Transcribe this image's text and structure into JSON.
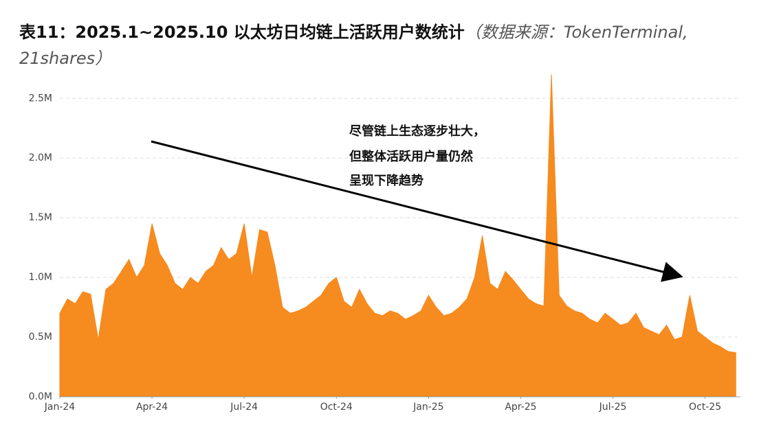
{
  "chart_data": {
    "type": "area",
    "title": "表11：2025.1~2025.10 以太坊日均链上活跃用户数统计",
    "subtitle": "（数据来源：TokenTerminal, 21shares）",
    "annotation": [
      "尽管链上生态逐步壮大，",
      "但整体活跃用户量仍然",
      "呈现下降趋势"
    ],
    "color": "#f68b1f",
    "grid": true,
    "x": [
      0,
      0.25,
      0.5,
      0.75,
      1,
      1.25,
      1.5,
      1.75,
      2,
      2.25,
      2.5,
      2.75,
      3,
      3.25,
      3.5,
      3.75,
      4,
      4.25,
      4.5,
      4.75,
      5,
      5.25,
      5.5,
      5.75,
      6,
      6.25,
      6.5,
      6.75,
      7,
      7.25,
      7.5,
      7.75,
      8,
      8.25,
      8.5,
      8.75,
      9,
      9.25,
      9.5,
      9.75,
      10,
      10.25,
      10.5,
      10.75,
      11,
      11.25,
      11.5,
      11.75,
      12,
      12.25,
      12.5,
      12.75,
      13,
      13.25,
      13.5,
      13.75,
      14,
      14.25,
      14.5,
      14.75,
      15,
      15.25,
      15.5,
      15.75,
      16,
      16.25,
      16.5,
      16.75,
      17,
      17.25,
      17.5,
      17.75,
      18,
      18.25,
      18.5,
      18.75,
      19,
      19.25,
      19.5,
      19.75,
      20,
      20.25,
      20.5,
      20.75,
      21,
      21.25,
      21.5,
      21.75,
      22
    ],
    "values": [
      700000,
      820000,
      780000,
      880000,
      860000,
      480000,
      900000,
      950000,
      1050000,
      1150000,
      1000000,
      1100000,
      1450000,
      1200000,
      1100000,
      950000,
      900000,
      1000000,
      950000,
      1050000,
      1100000,
      1250000,
      1150000,
      1200000,
      1450000,
      1000000,
      1400000,
      1380000,
      1100000,
      750000,
      700000,
      720000,
      750000,
      800000,
      850000,
      950000,
      1000000,
      800000,
      750000,
      900000,
      780000,
      700000,
      680000,
      720000,
      700000,
      650000,
      680000,
      720000,
      850000,
      750000,
      680000,
      700000,
      750000,
      820000,
      1000000,
      1350000,
      950000,
      900000,
      1050000,
      980000,
      900000,
      820000,
      780000,
      760000,
      2700000,
      850000,
      760000,
      720000,
      700000,
      650000,
      620000,
      700000,
      650000,
      600000,
      620000,
      700000,
      580000,
      550000,
      520000,
      600000,
      480000,
      500000,
      850000,
      550000,
      500000,
      450000,
      420000,
      380000,
      370000
    ],
    "xlim": [
      0,
      22.15
    ],
    "xticks": [
      {
        "value": 0,
        "label": "Jan-24"
      },
      {
        "value": 3,
        "label": "Apr-24"
      },
      {
        "value": 6,
        "label": "Jul-24"
      },
      {
        "value": 9,
        "label": "Oct-24"
      },
      {
        "value": 12,
        "label": "Jan-25"
      },
      {
        "value": 15,
        "label": "Apr-25"
      },
      {
        "value": 18,
        "label": "Jul-25"
      },
      {
        "value": 21,
        "label": "Oct-25"
      }
    ],
    "ylim": [
      0,
      2720000
    ],
    "yticks": [
      {
        "value": 0,
        "label": "0.0M"
      },
      {
        "value": 500000,
        "label": "0.5M"
      },
      {
        "value": 1000000,
        "label": "1.0M"
      },
      {
        "value": 1500000,
        "label": "1.5M"
      },
      {
        "value": 2000000,
        "label": "2.0M"
      },
      {
        "value": 2500000,
        "label": "2.5M"
      }
    ]
  }
}
